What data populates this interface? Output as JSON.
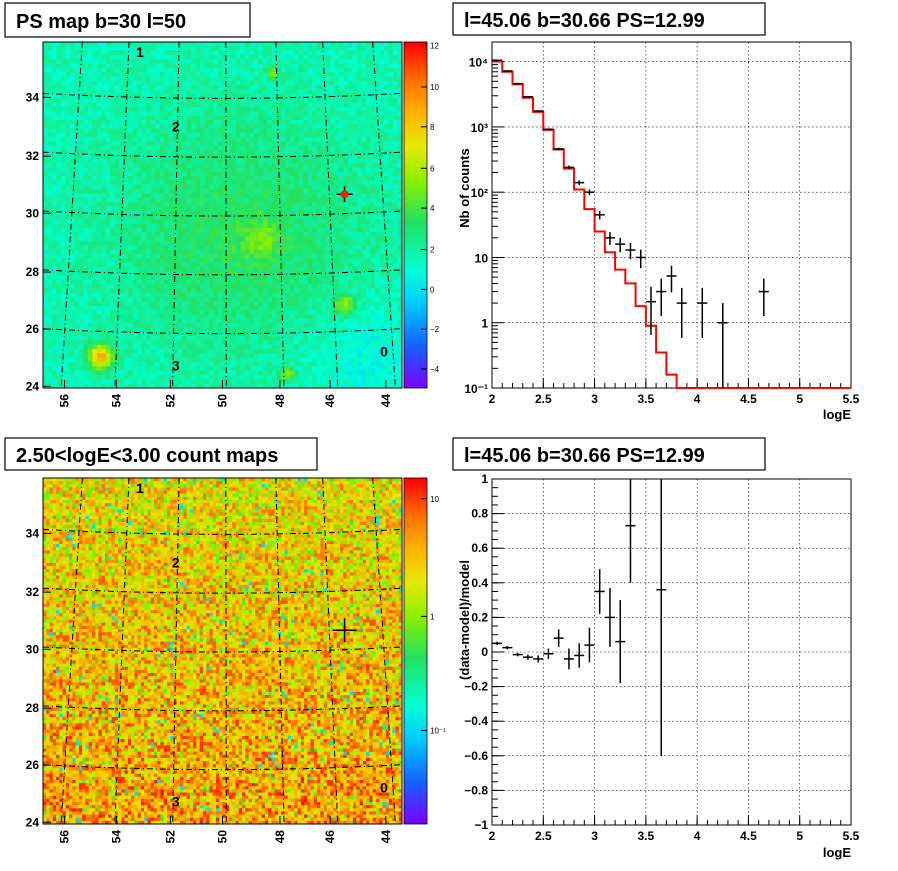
{
  "chart_data": [
    {
      "type": "heatmap",
      "title": "PS map b=30 l=50",
      "x_ticks": [
        "56",
        "54",
        "52",
        "50",
        "48",
        "46",
        "44"
      ],
      "y_ticks": [
        "24",
        "26",
        "28",
        "30",
        "32",
        "34"
      ],
      "colorbar_ticks": [
        "−4",
        "−2",
        "0",
        "2",
        "4",
        "6",
        "8",
        "10",
        "12"
      ],
      "colorbar_range": [
        -5,
        12
      ],
      "grid_labels": [
        "1",
        "2",
        "3",
        "0"
      ],
      "marker": {
        "x": 45.3,
        "y": 30.66
      }
    },
    {
      "type": "line",
      "title": "l=45.06 b=30.66 PS=12.99",
      "xlabel": "logE",
      "ylabel": "Nb of counts",
      "xlim": [
        2,
        5.5
      ],
      "ylim": [
        0.1,
        20000
      ],
      "log_y": true,
      "x_ticks": [
        "2",
        "2.5",
        "3",
        "3.5",
        "4",
        "4.5",
        "5",
        "5.5"
      ],
      "model_step": {
        "edges": [
          2.0,
          2.1,
          2.2,
          2.3,
          2.4,
          2.5,
          2.6,
          2.7,
          2.8,
          2.9,
          3.0,
          3.1,
          3.2,
          3.3,
          3.4,
          3.5,
          3.6,
          3.7,
          3.8,
          3.9,
          4.0,
          5.5
        ],
        "values": [
          10000,
          7000,
          4500,
          2800,
          1700,
          900,
          450,
          230,
          110,
          55,
          25,
          12,
          6.5,
          4,
          1.8,
          0.9,
          0.35,
          0.16,
          0.1,
          0.1,
          0.1
        ]
      },
      "data_points": [
        {
          "x": 2.05,
          "y": 10500
        },
        {
          "x": 2.15,
          "y": 7200
        },
        {
          "x": 2.25,
          "y": 4600
        },
        {
          "x": 2.35,
          "y": 2900
        },
        {
          "x": 2.45,
          "y": 1750
        },
        {
          "x": 2.55,
          "y": 920
        },
        {
          "x": 2.65,
          "y": 460
        },
        {
          "x": 2.75,
          "y": 240
        },
        {
          "x": 2.85,
          "y": 140
        },
        {
          "x": 2.95,
          "y": 100
        },
        {
          "x": 3.05,
          "y": 45
        },
        {
          "x": 3.15,
          "y": 20
        },
        {
          "x": 3.25,
          "y": 16
        },
        {
          "x": 3.35,
          "y": 13
        },
        {
          "x": 3.45,
          "y": 10
        },
        {
          "x": 3.55,
          "y": 2.1
        },
        {
          "x": 3.65,
          "y": 3.0
        },
        {
          "x": 3.75,
          "y": 5.2
        },
        {
          "x": 3.85,
          "y": 2.0
        },
        {
          "x": 4.05,
          "y": 2.0
        },
        {
          "x": 4.25,
          "y": 1.0
        },
        {
          "x": 4.65,
          "y": 3.0
        }
      ]
    },
    {
      "type": "heatmap",
      "title": "2.50<logE<3.00 count maps",
      "x_ticks": [
        "56",
        "54",
        "52",
        "50",
        "48",
        "46",
        "44"
      ],
      "y_ticks": [
        "24",
        "26",
        "28",
        "30",
        "32",
        "34"
      ],
      "colorbar_ticks": [
        "10",
        "1",
        "10⁻¹"
      ],
      "colorbar_log": true,
      "grid_labels": [
        "1",
        "2",
        "3",
        "0"
      ],
      "marker": {
        "x": 45.3,
        "y": 30.66
      }
    },
    {
      "type": "scatter",
      "title": "l=45.06 b=30.66 PS=12.99",
      "xlabel": "logE",
      "ylabel": "(data-model)/model",
      "xlim": [
        2,
        5.5
      ],
      "ylim": [
        -1,
        1
      ],
      "x_ticks": [
        "2",
        "2.5",
        "3",
        "3.5",
        "4",
        "4.5",
        "5",
        "5.5"
      ],
      "y_ticks": [
        "−1",
        "−0.8",
        "−0.6",
        "−0.4",
        "−0.2",
        "0",
        "0.2",
        "0.4",
        "0.6",
        "0.8",
        "1"
      ],
      "points": [
        {
          "x": 2.05,
          "y": 0.05,
          "err": 0.01
        },
        {
          "x": 2.15,
          "y": 0.025,
          "err": 0.01
        },
        {
          "x": 2.25,
          "y": -0.015,
          "err": 0.01
        },
        {
          "x": 2.35,
          "y": -0.03,
          "err": 0.015
        },
        {
          "x": 2.45,
          "y": -0.04,
          "err": 0.02
        },
        {
          "x": 2.55,
          "y": -0.01,
          "err": 0.03
        },
        {
          "x": 2.65,
          "y": 0.08,
          "err": 0.05
        },
        {
          "x": 2.75,
          "y": -0.04,
          "err": 0.06
        },
        {
          "x": 2.85,
          "y": -0.02,
          "err": 0.07
        },
        {
          "x": 2.95,
          "y": 0.04,
          "err": 0.1
        },
        {
          "x": 3.05,
          "y": 0.35,
          "err": 0.13
        },
        {
          "x": 3.15,
          "y": 0.2,
          "err": 0.17
        },
        {
          "x": 3.25,
          "y": 0.06,
          "err": 0.24
        },
        {
          "x": 3.35,
          "y": 0.73,
          "err": 0.33
        },
        {
          "x": 3.65,
          "y": 0.36,
          "err": 0.96
        }
      ]
    }
  ],
  "colors": {
    "model": "#ff0000",
    "data": "#000000",
    "frame": "#000000"
  }
}
